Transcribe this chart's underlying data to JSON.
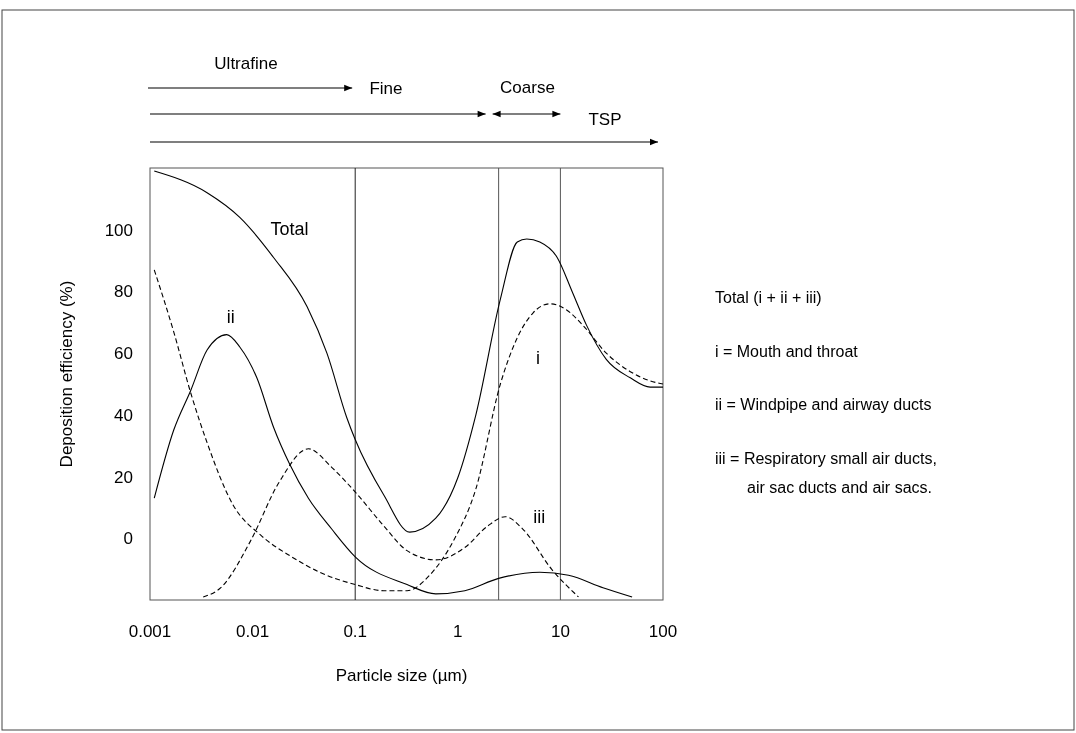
{
  "chart_data": {
    "type": "line",
    "xlabel": "Particle size (µm)",
    "ylabel": "Deposition efficiency (%)",
    "log": "x",
    "xlim": [
      0.001,
      100
    ],
    "xticks": [
      0.001,
      0.01,
      0.1,
      1,
      10,
      100
    ],
    "ylim": [
      -20,
      120
    ],
    "yticks": [
      0,
      20,
      40,
      60,
      80,
      100
    ],
    "ref_lines": [
      {
        "axis": "x",
        "value": 0.1,
        "color": "#222222"
      },
      {
        "axis": "x",
        "value": 2.5,
        "color": "#555555"
      },
      {
        "axis": "x",
        "value": 10,
        "color": "#555555"
      }
    ],
    "annotations": [
      "Ultrafine",
      "Fine",
      "Coarse",
      "TSP",
      "Total (i + ii + iii)",
      "i = Mouth and throat",
      "ii = Windpipe and airway ducts",
      "iii = Respiratory small air ducts, air sac ducts and air sacs."
    ],
    "series": [
      {
        "name": "Total",
        "color": "#000000",
        "line_style": "solid",
        "x": [
          0.0011,
          0.0036,
          0.0075,
          0.016,
          0.034,
          0.053,
          0.083,
          0.1,
          0.19,
          0.34,
          0.61,
          1,
          1.5,
          2.6,
          3.8,
          4.7,
          6.3,
          9.3,
          13,
          18,
          28,
          48,
          75,
          100
        ],
        "values": [
          119,
          112,
          104,
          91,
          75,
          60,
          39,
          32,
          14,
          2,
          6.5,
          19.6,
          40,
          77.5,
          96,
          97,
          96,
          91,
          80,
          69,
          58,
          52,
          49,
          49
        ]
      },
      {
        "name": "i",
        "color": "#000000",
        "line_style": "dashed",
        "x": [
          0.0011,
          0.0017,
          0.0025,
          0.0036,
          0.0064,
          0.012,
          0.024,
          0.045,
          0.1,
          0.19,
          0.32,
          0.53,
          0.9,
          1.5,
          2.6,
          3.8,
          5.4,
          7.9,
          11.5,
          16.6,
          28,
          48,
          75,
          100
        ],
        "values": [
          87,
          67,
          47,
          31,
          11,
          1,
          -6,
          -11,
          -15,
          -17,
          -17,
          -12,
          -1,
          16,
          50,
          65,
          73,
          76,
          74,
          69,
          60,
          54,
          51,
          50
        ]
      },
      {
        "name": "ii",
        "color": "#000000",
        "line_style": "solid",
        "x": [
          0.0011,
          0.0017,
          0.0025,
          0.0036,
          0.0056,
          0.0075,
          0.011,
          0.016,
          0.023,
          0.035,
          0.059,
          0.1,
          0.32,
          0.61,
          1.17,
          2.5,
          6.3,
          12,
          26,
          50
        ],
        "values": [
          13,
          35,
          48,
          61,
          66,
          62,
          52,
          36,
          24,
          13,
          3,
          -6,
          -15,
          -18,
          -17,
          -13,
          -11,
          -12,
          -16,
          -19
        ]
      },
      {
        "name": "iii",
        "color": "#000000",
        "line_style": "dashed",
        "x": [
          0.0033,
          0.0049,
          0.0095,
          0.018,
          0.035,
          0.059,
          0.1,
          0.19,
          0.32,
          0.61,
          1.17,
          1.96,
          2.9,
          4.3,
          8.2,
          15
        ],
        "values": [
          -19,
          -16,
          -1,
          18,
          29,
          23,
          15,
          4,
          -4,
          -7,
          -3,
          4,
          7,
          3,
          -10,
          -19
        ]
      }
    ]
  }
}
